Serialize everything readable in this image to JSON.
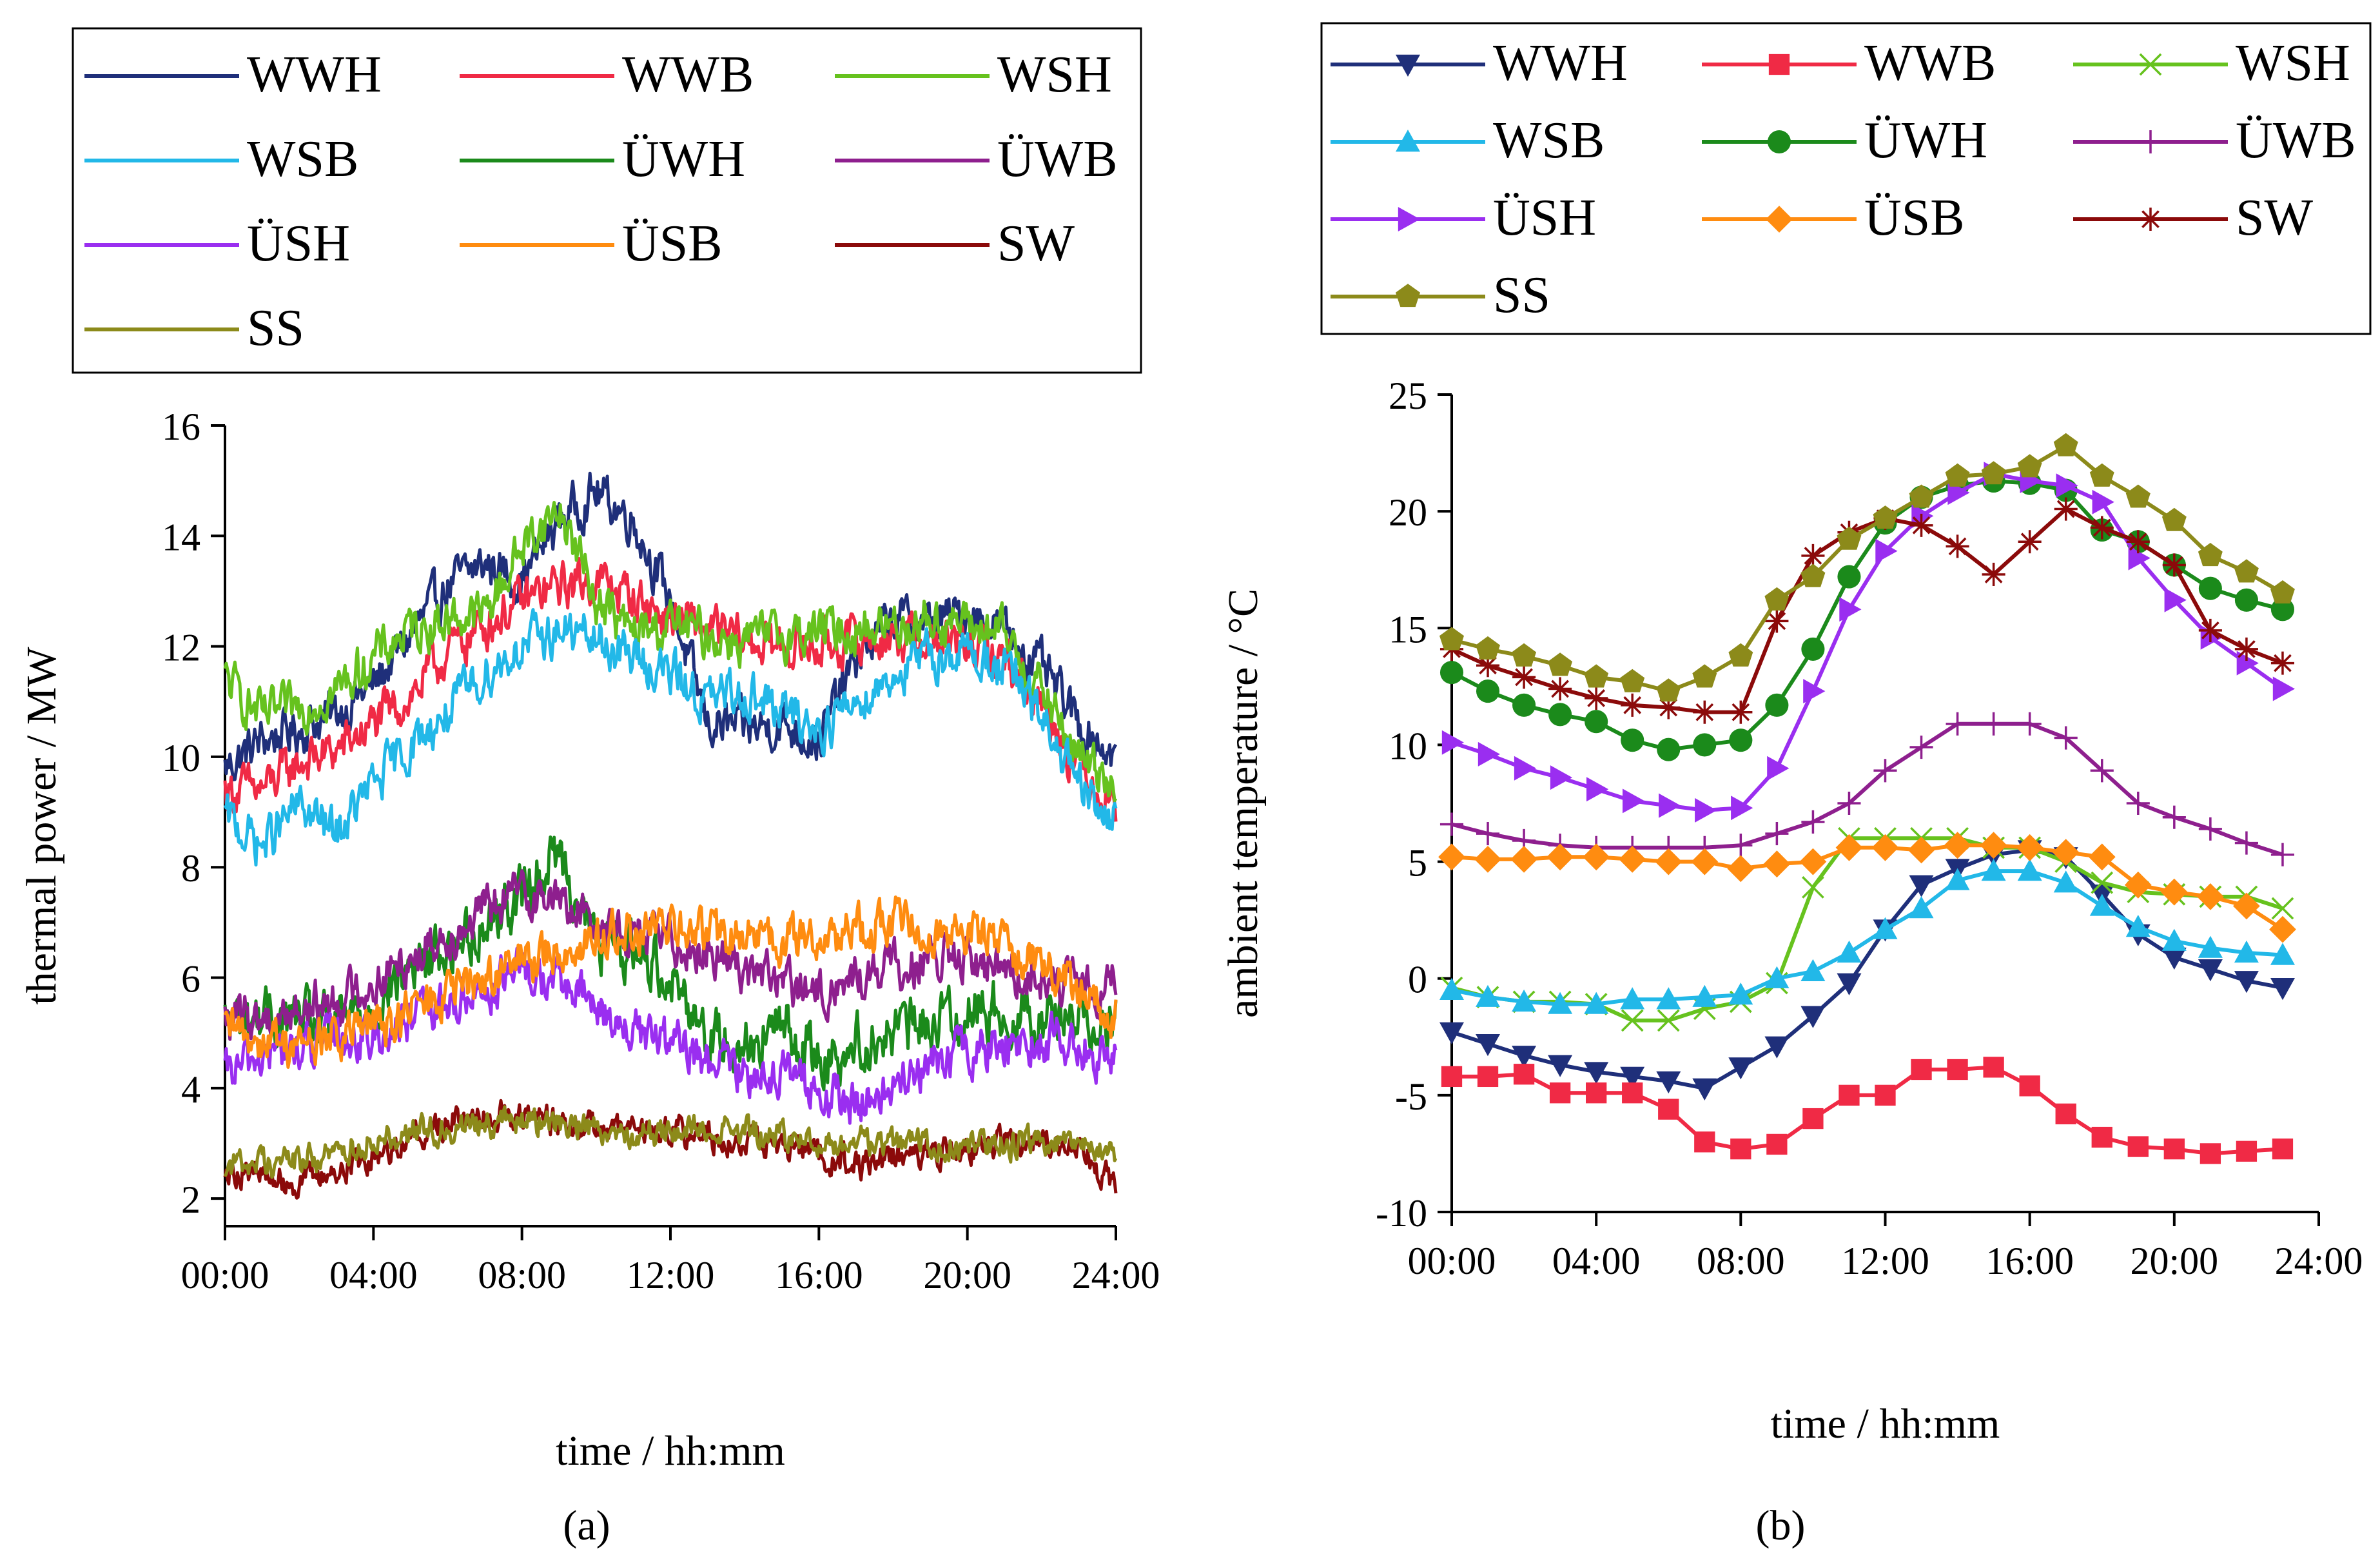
{
  "series_styles": {
    "WWH": {
      "color": "#1f2f7a",
      "marker": "triangle-down"
    },
    "WWB": {
      "color": "#f02a45",
      "marker": "square"
    },
    "WSH": {
      "color": "#66c21e",
      "marker": "x"
    },
    "WSB": {
      "color": "#22b8e8",
      "marker": "triangle-up"
    },
    "ÜWH": {
      "color": "#1b8a1b",
      "marker": "circle"
    },
    "ÜWB": {
      "color": "#8e1f8e",
      "marker": "plus"
    },
    "ÜSH": {
      "color": "#9a2ef0",
      "marker": "triangle-right"
    },
    "ÜSB": {
      "color": "#ff8c10",
      "marker": "diamond"
    },
    "SW": {
      "color": "#8b0a0a",
      "marker": "star"
    },
    "SS": {
      "color": "#8c8a1a",
      "marker": "pentagon"
    }
  },
  "chart_data": [
    {
      "type": "line",
      "panel_label": "(a)",
      "title": "",
      "xlabel": "time / hh:mm",
      "ylabel": "thermal power / MW",
      "xlim": [
        0,
        24
      ],
      "ylim": [
        1.5,
        16
      ],
      "x_ticks": [
        0,
        4,
        8,
        12,
        16,
        20,
        24
      ],
      "x_tick_labels": [
        "00:00",
        "04:00",
        "08:00",
        "12:00",
        "16:00",
        "20:00",
        "24:00"
      ],
      "y_ticks": [
        2,
        4,
        6,
        8,
        10,
        12,
        14,
        16
      ],
      "y_tick_labels": [
        "2",
        "4",
        "6",
        "8",
        "10",
        "12",
        "14",
        "16"
      ],
      "legend_position": "top",
      "legend_columns": 3,
      "legend": [
        "WWH",
        "WWB",
        "WSH",
        "WSB",
        "ÜWH",
        "ÜWB",
        "ÜSH",
        "ÜSB",
        "SW",
        "SS"
      ],
      "x": [
        0,
        1,
        2,
        3,
        4,
        5,
        6,
        7,
        8,
        9,
        10,
        11,
        12,
        13,
        14,
        15,
        16,
        17,
        18,
        19,
        20,
        21,
        22,
        23,
        24
      ],
      "series": [
        {
          "name": "WWH",
          "values": [
            9.8,
            10.3,
            10.5,
            10.8,
            11.3,
            12.2,
            13.1,
            13.5,
            13.2,
            14.3,
            14.8,
            14.3,
            12.8,
            10.6,
            10.5,
            10.6,
            10.3,
            11.8,
            12.5,
            12.4,
            12.6,
            12.3,
            11.6,
            10.6,
            10.0
          ]
        },
        {
          "name": "WWB",
          "values": [
            9.4,
            9.4,
            9.9,
            10.1,
            10.6,
            11.1,
            11.9,
            12.4,
            12.8,
            13.1,
            13.2,
            12.9,
            12.5,
            12.3,
            12.1,
            12.0,
            12.0,
            12.1,
            12.2,
            12.1,
            12.0,
            11.8,
            11.0,
            9.8,
            9.2
          ]
        },
        {
          "name": "WSH",
          "values": [
            11.4,
            10.7,
            10.9,
            11.2,
            11.8,
            12.3,
            12.5,
            12.6,
            13.8,
            14.5,
            12.9,
            12.2,
            12.4,
            12.2,
            12.1,
            12.2,
            12.3,
            12.3,
            12.4,
            12.5,
            12.4,
            12.2,
            11.2,
            10.0,
            9.6
          ]
        },
        {
          "name": "WSB",
          "values": [
            8.9,
            8.4,
            9.1,
            8.6,
            9.5,
            10.2,
            10.8,
            11.5,
            12.0,
            12.3,
            12.1,
            11.8,
            11.5,
            11.0,
            11.2,
            10.8,
            10.5,
            11.0,
            11.5,
            11.8,
            11.9,
            11.6,
            10.7,
            9.4,
            8.8
          ]
        },
        {
          "name": "ÜWH",
          "values": [
            5.2,
            5.3,
            5.2,
            5.1,
            5.5,
            6.2,
            6.5,
            7.0,
            7.5,
            8.3,
            6.6,
            6.5,
            6.1,
            5.0,
            4.8,
            5.1,
            4.5,
            4.8,
            5.0,
            5.2,
            5.4,
            5.4,
            5.3,
            5.3,
            5.2
          ]
        },
        {
          "name": "ÜWB",
          "values": [
            5.2,
            5.3,
            5.4,
            5.6,
            5.9,
            6.4,
            6.8,
            7.2,
            7.6,
            7.4,
            7.0,
            6.8,
            6.7,
            6.5,
            6.2,
            5.9,
            5.7,
            6.0,
            6.2,
            6.3,
            6.3,
            6.2,
            6.0,
            5.8,
            5.9
          ]
        },
        {
          "name": "ÜSH",
          "values": [
            4.2,
            4.6,
            4.7,
            4.9,
            4.9,
            5.2,
            5.5,
            5.8,
            6.1,
            5.9,
            5.5,
            5.0,
            4.8,
            4.5,
            4.3,
            4.3,
            3.9,
            3.7,
            4.0,
            4.4,
            4.6,
            4.8,
            4.9,
            4.8,
            4.5
          ]
        },
        {
          "name": "ÜSB",
          "values": [
            5.0,
            4.9,
            4.8,
            4.9,
            5.1,
            5.4,
            5.7,
            6.0,
            6.3,
            6.5,
            6.7,
            6.8,
            6.9,
            6.8,
            6.7,
            6.7,
            6.7,
            6.9,
            7.0,
            6.9,
            6.8,
            6.6,
            6.3,
            5.8,
            5.4
          ]
        },
        {
          "name": "SW",
          "values": [
            2.6,
            2.4,
            2.3,
            2.5,
            2.8,
            3.1,
            3.4,
            3.6,
            3.5,
            3.4,
            3.3,
            3.2,
            3.3,
            3.1,
            3.0,
            3.0,
            2.8,
            2.6,
            2.7,
            2.8,
            2.9,
            3.0,
            3.1,
            2.9,
            2.2
          ]
        },
        {
          "name": "SS",
          "values": [
            2.6,
            2.7,
            2.7,
            2.8,
            3.1,
            3.2,
            3.3,
            3.4,
            3.4,
            3.4,
            3.3,
            3.2,
            3.2,
            3.3,
            3.2,
            3.1,
            3.0,
            3.0,
            3.0,
            3.0,
            3.0,
            3.0,
            3.0,
            2.9,
            2.8
          ]
        }
      ]
    },
    {
      "type": "line",
      "panel_label": "(b)",
      "title": "",
      "xlabel": "time / hh:mm",
      "ylabel": "ambient temperature / °C",
      "xlim": [
        0,
        24
      ],
      "ylim": [
        -10,
        25
      ],
      "x_ticks": [
        0,
        4,
        8,
        12,
        16,
        20,
        24
      ],
      "x_tick_labels": [
        "00:00",
        "04:00",
        "08:00",
        "12:00",
        "16:00",
        "20:00",
        "24:00"
      ],
      "y_ticks": [
        -10,
        -5,
        0,
        5,
        10,
        15,
        20,
        25
      ],
      "y_tick_labels": [
        "-10",
        "-5",
        "0",
        "5",
        "10",
        "15",
        "20",
        "25"
      ],
      "legend_position": "top",
      "legend_columns": 3,
      "legend": [
        "WWH",
        "WWB",
        "WSH",
        "WSB",
        "ÜWH",
        "ÜWB",
        "ÜSH",
        "ÜSB",
        "SW",
        "SS"
      ],
      "x": [
        0,
        1,
        2,
        3,
        4,
        5,
        6,
        7,
        8,
        9,
        10,
        11,
        12,
        13,
        14,
        15,
        16,
        17,
        18,
        19,
        20,
        21,
        22,
        23
      ],
      "series": [
        {
          "name": "WWH",
          "values": [
            -2.3,
            -2.8,
            -3.3,
            -3.7,
            -4.0,
            -4.2,
            -4.4,
            -4.7,
            -3.8,
            -2.9,
            -1.6,
            -0.2,
            2.1,
            4.0,
            4.7,
            5.3,
            5.5,
            5.2,
            3.6,
            1.9,
            0.9,
            0.4,
            -0.1,
            -0.4
          ]
        },
        {
          "name": "WWB",
          "values": [
            -4.2,
            -4.2,
            -4.1,
            -4.9,
            -4.9,
            -4.9,
            -5.6,
            -7.0,
            -7.3,
            -7.1,
            -6.0,
            -5.0,
            -5.0,
            -3.9,
            -3.9,
            -3.8,
            -4.6,
            -5.8,
            -6.8,
            -7.2,
            -7.3,
            -7.5,
            -7.4,
            -7.3
          ]
        },
        {
          "name": "WSH",
          "values": [
            -0.4,
            -0.8,
            -1.0,
            -1.0,
            -1.1,
            -1.8,
            -1.8,
            -1.3,
            -1.0,
            -0.2,
            3.9,
            6.0,
            6.0,
            6.0,
            6.0,
            5.6,
            5.6,
            5.0,
            4.1,
            3.7,
            3.6,
            3.5,
            3.5,
            3.0
          ]
        },
        {
          "name": "WSB",
          "values": [
            -0.5,
            -0.8,
            -1.0,
            -1.1,
            -1.1,
            -0.9,
            -0.9,
            -0.8,
            -0.7,
            0.0,
            0.3,
            1.1,
            2.1,
            3.0,
            4.2,
            4.6,
            4.6,
            4.1,
            3.1,
            2.2,
            1.6,
            1.3,
            1.1,
            1.0
          ]
        },
        {
          "name": "ÜWH",
          "values": [
            13.1,
            12.3,
            11.7,
            11.3,
            11.0,
            10.2,
            9.8,
            10.0,
            10.2,
            11.7,
            14.1,
            17.2,
            19.5,
            20.6,
            21.1,
            21.3,
            21.2,
            20.9,
            19.2,
            18.7,
            17.7,
            16.7,
            16.2,
            15.8
          ]
        },
        {
          "name": "ÜWB",
          "values": [
            6.6,
            6.2,
            5.9,
            5.7,
            5.6,
            5.6,
            5.6,
            5.6,
            5.7,
            6.2,
            6.7,
            7.5,
            8.9,
            9.9,
            10.9,
            10.9,
            10.9,
            10.3,
            8.9,
            7.5,
            6.9,
            6.4,
            5.8,
            5.3
          ]
        },
        {
          "name": "ÜSH",
          "values": [
            10.1,
            9.6,
            9.0,
            8.6,
            8.1,
            7.6,
            7.4,
            7.2,
            7.3,
            9.0,
            12.3,
            15.8,
            18.3,
            19.8,
            20.8,
            21.6,
            21.3,
            21.1,
            20.4,
            18.0,
            16.2,
            14.6,
            13.5,
            12.4
          ]
        },
        {
          "name": "ÜSB",
          "values": [
            5.2,
            5.1,
            5.1,
            5.2,
            5.2,
            5.1,
            5.0,
            5.0,
            4.7,
            4.9,
            5.0,
            5.6,
            5.6,
            5.5,
            5.7,
            5.7,
            5.6,
            5.4,
            5.2,
            4.0,
            3.7,
            3.5,
            3.1,
            2.1
          ]
        },
        {
          "name": "SW",
          "values": [
            14.1,
            13.4,
            12.9,
            12.4,
            12.0,
            11.7,
            11.6,
            11.4,
            11.4,
            15.3,
            18.1,
            19.1,
            19.7,
            19.4,
            18.5,
            17.3,
            18.7,
            20.1,
            19.3,
            18.7,
            17.7,
            14.9,
            14.1,
            13.5
          ]
        },
        {
          "name": "SS",
          "values": [
            14.5,
            14.1,
            13.8,
            13.4,
            12.9,
            12.7,
            12.3,
            12.9,
            13.8,
            16.2,
            17.2,
            18.8,
            19.7,
            20.6,
            21.5,
            21.6,
            21.9,
            22.8,
            21.5,
            20.6,
            19.6,
            18.1,
            17.4,
            16.5
          ]
        }
      ]
    }
  ]
}
